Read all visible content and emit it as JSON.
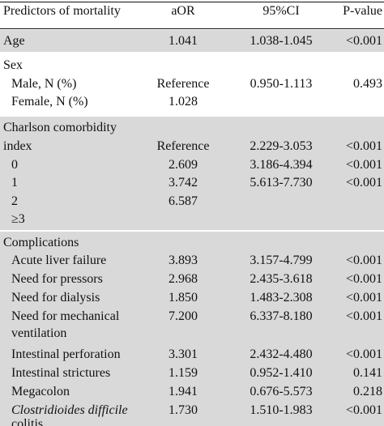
{
  "header": {
    "col1": "Predictors of mortality",
    "col2": "aOR",
    "col3": "95%CI",
    "col4": "P-value"
  },
  "rows": {
    "age": {
      "label": "Age",
      "aor": "1.041",
      "ci": "1.038-1.045",
      "p": "<0.001"
    },
    "sex_title": "Sex",
    "male": {
      "label": "Male, N (%)",
      "aor": "Reference",
      "ci": "0.950-1.113",
      "p": "0.493"
    },
    "female": {
      "label": "Female, N (%)",
      "aor": "1.028"
    },
    "cci_title_1": "Charlson comorbidity",
    "cci_title_2": "index",
    "cci_row1": {
      "aor": "Reference",
      "ci": "2.229-3.053",
      "p": "<0.001"
    },
    "cci_0": {
      "label": "0",
      "aor": "2.609",
      "ci": "3.186-4.394",
      "p": "<0.001"
    },
    "cci_1": {
      "label": "1",
      "aor": "3.742",
      "ci": "5.613-7.730",
      "p": "<0.001"
    },
    "cci_2": {
      "label": "2",
      "aor": "6.587"
    },
    "cci_3": {
      "label": "≥3"
    },
    "comp_title": "Complications",
    "alf": {
      "label": "Acute liver failure",
      "aor": "3.893",
      "ci": "3.157-4.799",
      "p": "<0.001"
    },
    "pressors": {
      "label": "Need for pressors",
      "aor": "2.968",
      "ci": "2.435-3.618",
      "p": "<0.001"
    },
    "dialysis": {
      "label": "Need for dialysis",
      "aor": "1.850",
      "ci": "1.483-2.308",
      "p": "<0.001"
    },
    "mech": {
      "label_1": "Need for mechanical",
      "label_2": "ventilation",
      "aor": "7.200",
      "ci": "6.337-8.180",
      "p": "<0.001"
    },
    "perf": {
      "label": "Intestinal perforation",
      "aor": "3.301",
      "ci": "2.432-4.480",
      "p": "<0.001"
    },
    "strict": {
      "label": "Intestinal strictures",
      "aor": "1.159",
      "ci": "0.952-1.410",
      "p": "0.141"
    },
    "mega": {
      "label": "Megacolon",
      "aor": "1.941",
      "ci": "0.676-5.573",
      "p": "0.218"
    },
    "cdiff": {
      "label_1": "Clostridioides difficile",
      "label_2": "colitis",
      "aor": "1.730",
      "ci": "1.510-1.983",
      "p": "<0.001"
    }
  }
}
